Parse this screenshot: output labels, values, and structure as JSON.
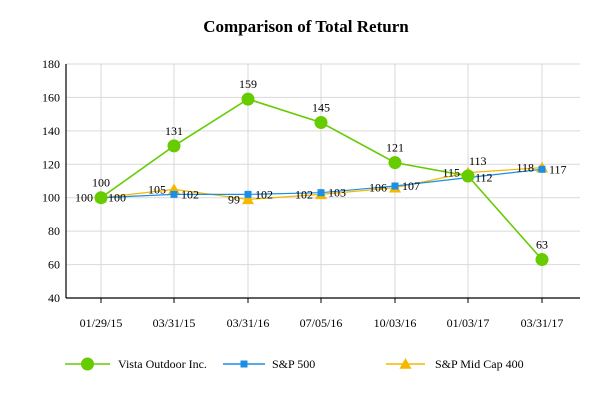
{
  "chart_data": {
    "type": "line",
    "title": "Comparison of Total Return",
    "xlabel": "",
    "ylabel": "",
    "ylim": [
      40,
      180
    ],
    "yticks": [
      40,
      60,
      80,
      100,
      120,
      140,
      160,
      180
    ],
    "grid": true,
    "legend": "bottom",
    "categories": [
      "01/29/15",
      "03/31/15",
      "03/31/16",
      "07/05/16",
      "10/03/16",
      "01/03/17",
      "03/31/17"
    ],
    "series": [
      {
        "name": "Vista Outdoor Inc.",
        "color": "#66cc00",
        "marker": "circle",
        "values": [
          100,
          131,
          159,
          145,
          121,
          113,
          63
        ],
        "labels": [
          "100",
          "131",
          "159",
          "145",
          "121",
          "113",
          "63"
        ],
        "label_pos": [
          "above",
          "above",
          "above",
          "above",
          "above",
          "above-right",
          "above"
        ]
      },
      {
        "name": "S&P 500",
        "color": "#1a8fe3",
        "marker": "square",
        "values": [
          100,
          102,
          102,
          103,
          107,
          112,
          117
        ],
        "labels": [
          "100",
          "102",
          "102",
          "103",
          "107",
          "112",
          "117"
        ],
        "label_pos": [
          "right",
          "right",
          "right",
          "right",
          "right",
          "right",
          "right"
        ]
      },
      {
        "name": "S&P Mid Cap 400",
        "color": "#f5b700",
        "marker": "triangle",
        "values": [
          100,
          105,
          99,
          102,
          106,
          115,
          118
        ],
        "labels": [
          "100",
          "105",
          "99",
          "102",
          "106",
          "115",
          "118"
        ],
        "label_pos": [
          "left",
          "left",
          "left",
          "left",
          "left",
          "left",
          "left"
        ]
      }
    ]
  }
}
